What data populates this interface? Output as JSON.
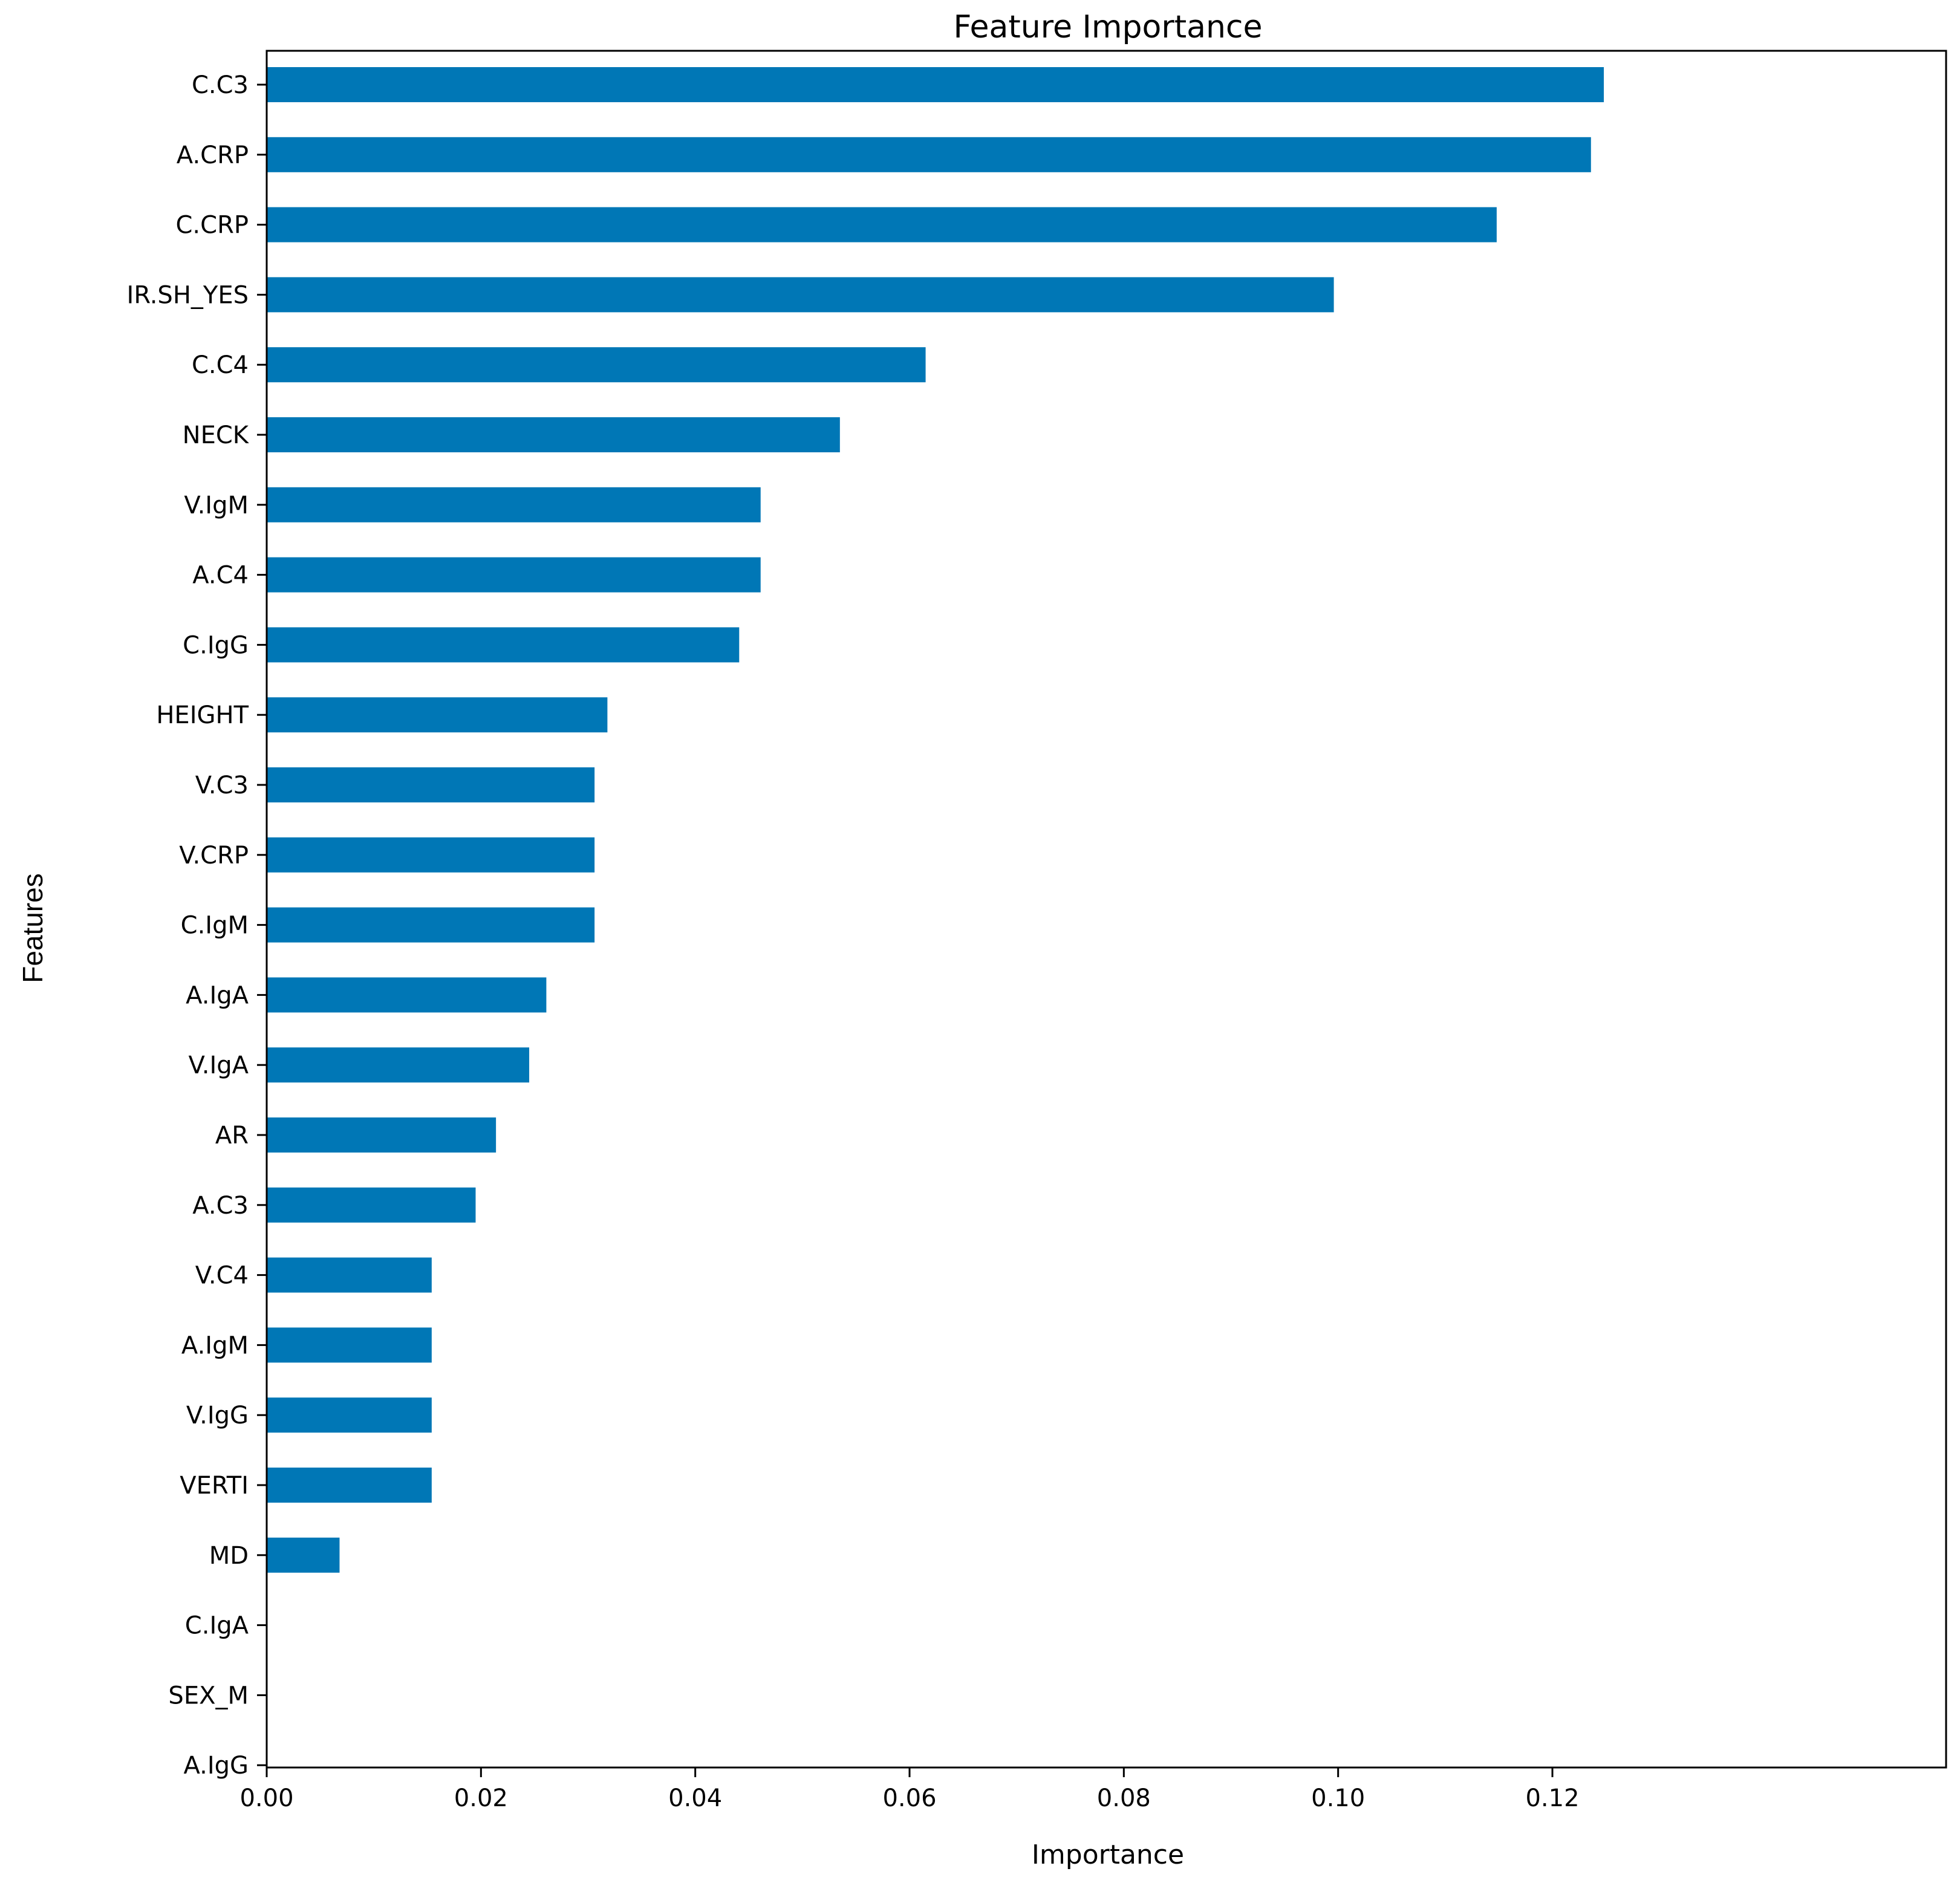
{
  "chart_data": {
    "type": "bar",
    "orientation": "horizontal",
    "title": "Feature Importance",
    "xlabel": "Importance",
    "ylabel": "Features",
    "xlim": [
      0.0,
      0.131
    ],
    "xticks": [
      "0.00",
      "0.02",
      "0.04",
      "0.06",
      "0.08",
      "0.10",
      "0.12"
    ],
    "xtick_values": [
      0.0,
      0.02,
      0.04,
      0.06,
      0.08,
      0.1,
      0.12
    ],
    "categories": [
      "C.C3",
      "A.CRP",
      "C.CRP",
      "IR.SH_YES",
      "C.C4",
      "NECK",
      "V.IgM",
      "A.C4",
      "C.IgG",
      "HEIGHT",
      "V.C3",
      "V.CRP",
      "C.IgM",
      "A.IgA",
      "V.IgA",
      "AR",
      "A.C3",
      "V.C4",
      "A.IgM",
      "V.IgG",
      "VERTI",
      "MD",
      "C.IgA",
      "SEX_M",
      "A.IgG"
    ],
    "values": [
      0.1248,
      0.1236,
      0.1148,
      0.0996,
      0.0615,
      0.0535,
      0.0461,
      0.0461,
      0.0441,
      0.0318,
      0.0306,
      0.0306,
      0.0306,
      0.0261,
      0.0245,
      0.0214,
      0.0195,
      0.0154,
      0.0154,
      0.0154,
      0.0154,
      0.0068,
      0.0,
      0.0,
      0.0
    ],
    "bar_color": "#0077b6",
    "grid": false
  }
}
